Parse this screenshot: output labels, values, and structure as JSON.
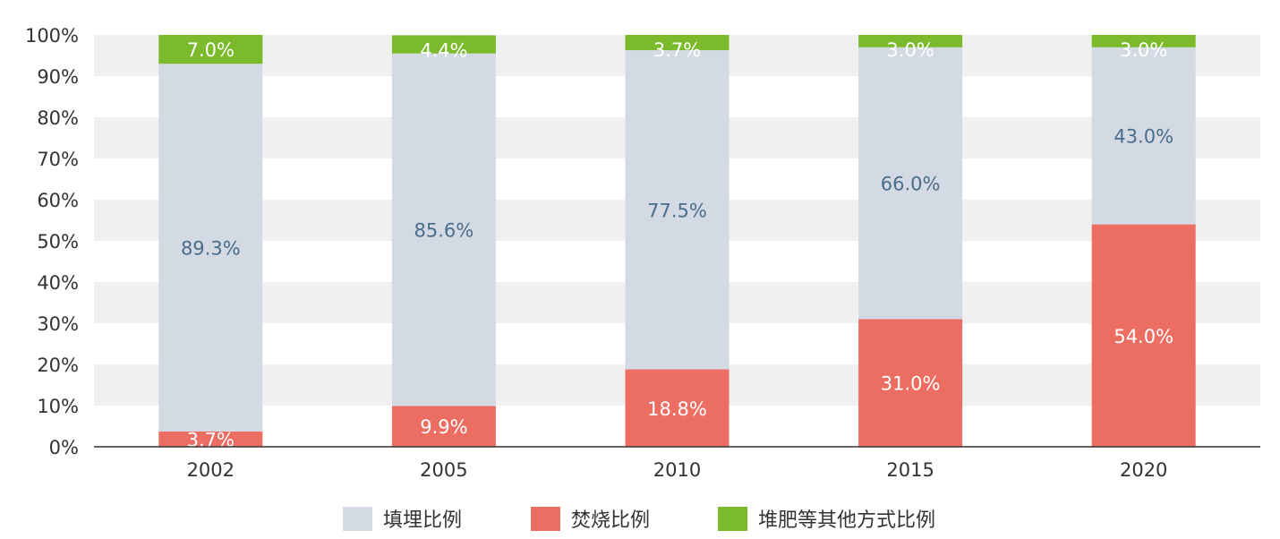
{
  "chart_data": {
    "type": "bar",
    "stacked": true,
    "categories": [
      "2002",
      "2005",
      "2010",
      "2015",
      "2020"
    ],
    "ylim": [
      0,
      100
    ],
    "yticks": [
      "0%",
      "10%",
      "20%",
      "30%",
      "40%",
      "50%",
      "60%",
      "70%",
      "80%",
      "90%",
      "100%"
    ],
    "grid": "alternating horizontal bands",
    "legend_position": "bottom",
    "series": [
      {
        "name": "焚烧比例",
        "color": "#EC6E63",
        "label_color": "#ffffff",
        "values": [
          3.7,
          9.9,
          18.8,
          31.0,
          54.0
        ],
        "labels": [
          "3.7%",
          "9.9%",
          "18.8%",
          "31.0%",
          "54.0%"
        ]
      },
      {
        "name": "填埋比例",
        "color": "#D4DAE3",
        "label_color": "#4A6D8C",
        "values": [
          89.3,
          85.6,
          77.5,
          66.0,
          43.0
        ],
        "labels": [
          "89.3%",
          "85.6%",
          "77.5%",
          "66.0%",
          "43.0%"
        ]
      },
      {
        "name": "堆肥等其他方式比例",
        "color": "#7BBA2A",
        "label_color": "#ffffff",
        "values": [
          7.0,
          4.4,
          3.7,
          3.0,
          3.0
        ],
        "labels": [
          "7.0%",
          "4.4%",
          "3.7%",
          "3.0%",
          "3.0%"
        ]
      }
    ]
  },
  "legend": [
    {
      "label": "填埋比例",
      "color": "#D4DAE3"
    },
    {
      "label": "焚烧比例",
      "color": "#EC6E63"
    },
    {
      "label": "堆肥等其他方式比例",
      "color": "#7BBA2A"
    }
  ]
}
